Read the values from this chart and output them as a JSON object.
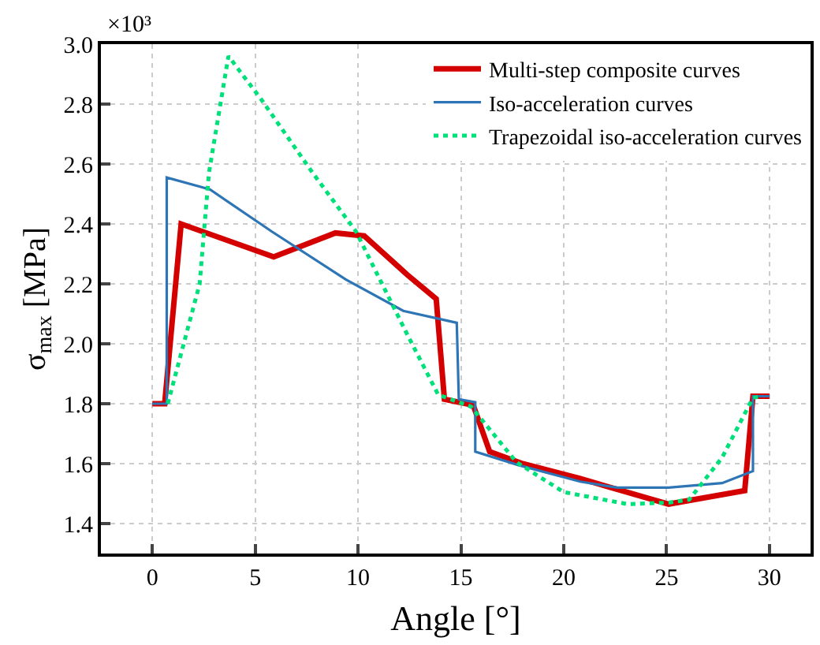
{
  "chart_data": {
    "type": "line",
    "xlabel": "Angle [°]",
    "ylabel": "σ$_{max}$ [MPa]",
    "annotations": [
      "×10³"
    ],
    "xlim": [
      -2.5,
      32
    ],
    "xticks": [
      0,
      5,
      10,
      15,
      20,
      25,
      30
    ],
    "ylim": [
      1.3,
      3.0
    ],
    "yticks": [
      1.4,
      1.6,
      1.8,
      {
        "value": 2,
        "label": "2.0"
      },
      2.2,
      2.4,
      2.6,
      2.8,
      {
        "value": 3,
        "label": "3.0"
      }
    ],
    "grid": true,
    "legend": "top right",
    "marker": "none",
    "series": [
      {
        "name": "Multi-step composite curves",
        "color": "#d40000",
        "line_style": "solid",
        "x": [
          0,
          0.6,
          1.4,
          5.9,
          8.9,
          10.3,
          12.4,
          13.8,
          14.2,
          15.6,
          16.4,
          18,
          20.8,
          25.1,
          28.8,
          29.2,
          30
        ],
        "values": [
          1.8,
          1.8,
          2.4,
          2.29,
          2.37,
          2.36,
          2.23,
          2.15,
          1.815,
          1.795,
          1.64,
          1.6,
          1.55,
          1.465,
          1.51,
          1.825,
          1.825
        ]
      },
      {
        "name": "Iso-acceleration curves",
        "color": "#2e75b6",
        "line_style": "solid",
        "x": [
          0,
          0.7,
          0.7,
          2.8,
          5.8,
          9.4,
          12.2,
          14.8,
          14.9,
          15.7,
          15.7,
          17.8,
          20.8,
          22.6,
          25.1,
          27.7,
          29.2,
          29.2,
          30
        ],
        "values": [
          1.8,
          1.8,
          2.555,
          2.515,
          2.375,
          2.215,
          2.11,
          2.07,
          1.815,
          1.805,
          1.64,
          1.595,
          1.54,
          1.52,
          1.52,
          1.535,
          1.575,
          1.825,
          1.825
        ]
      },
      {
        "name": "Trapezoidal iso-acceleration curves",
        "color": "#00e07a",
        "line_style": "dotted",
        "x": [
          0.75,
          2.3,
          2.75,
          3.7,
          5.3,
          7.8,
          9.9,
          12.4,
          13.9,
          15.5,
          17.7,
          20,
          23.1,
          25.1,
          26.1,
          27.7,
          29.2,
          29.6
        ],
        "values": [
          1.8,
          2.2,
          2.57,
          2.96,
          2.815,
          2.57,
          2.375,
          2.03,
          1.83,
          1.79,
          1.605,
          1.505,
          1.465,
          1.47,
          1.48,
          1.62,
          1.82,
          1.825
        ]
      }
    ]
  }
}
